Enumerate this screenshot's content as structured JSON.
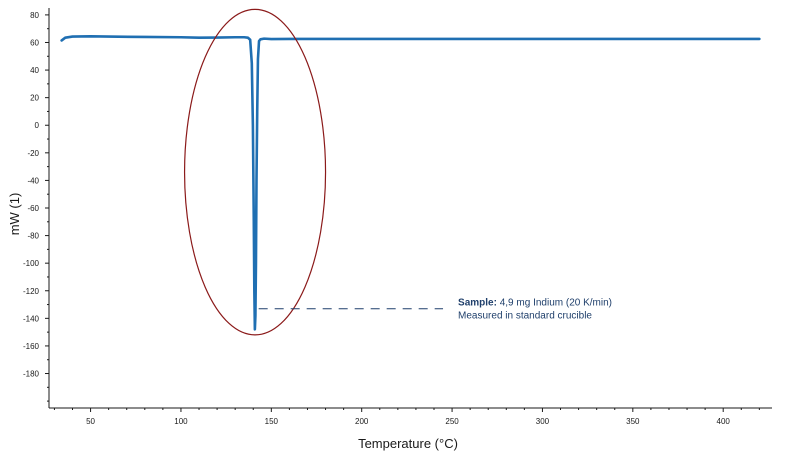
{
  "chart_data": {
    "type": "line",
    "xlabel": "Temperature (°C)",
    "ylabel": "mW (1)",
    "xlim": [
      27,
      427
    ],
    "ylim": [
      -205,
      85
    ],
    "x_ticks": [
      50,
      100,
      150,
      200,
      250,
      300,
      350,
      400
    ],
    "y_ticks": [
      80,
      60,
      40,
      20,
      0,
      -20,
      -40,
      -60,
      -80,
      -100,
      -120,
      -140,
      -160,
      -180
    ],
    "grid": false,
    "series": [
      {
        "color": "#1f6fb2",
        "x": [
          34,
          36,
          40,
          50,
          60,
          80,
          100,
          110,
          120,
          130,
          135,
          137,
          138.3,
          139.2,
          139.8,
          140.3,
          140.6,
          140.9,
          141.2,
          141.5,
          141.8,
          142.2,
          142.6,
          143.2,
          144,
          146,
          150,
          160,
          200,
          250,
          300,
          350,
          400,
          420
        ],
        "y": [
          61.5,
          63.5,
          64.3,
          64.5,
          64.3,
          64,
          63.8,
          63.5,
          63.6,
          63.8,
          63.8,
          63.5,
          62,
          45,
          0,
          -70,
          -120,
          -148,
          -138,
          -100,
          -40,
          10,
          48,
          61,
          62.3,
          62.8,
          62.5,
          62.6,
          62.6,
          62.6,
          62.6,
          62.6,
          62.6,
          62.6
        ]
      }
    ],
    "annotations": {
      "ellipse_color": "#8b1a1a",
      "ellipse_center": [
        141,
        -34
      ],
      "ellipse_x_radius": 39,
      "ellipse_y_radius": 118,
      "text_color": "#1f3f6b",
      "leader_y": -133,
      "leader_x": [
        143,
        245
      ],
      "sample_label": "Sample:",
      "sample_text": " 4,9 mg Indium (20 K/min)",
      "sample_line2": "Measured in standard crucible"
    }
  }
}
